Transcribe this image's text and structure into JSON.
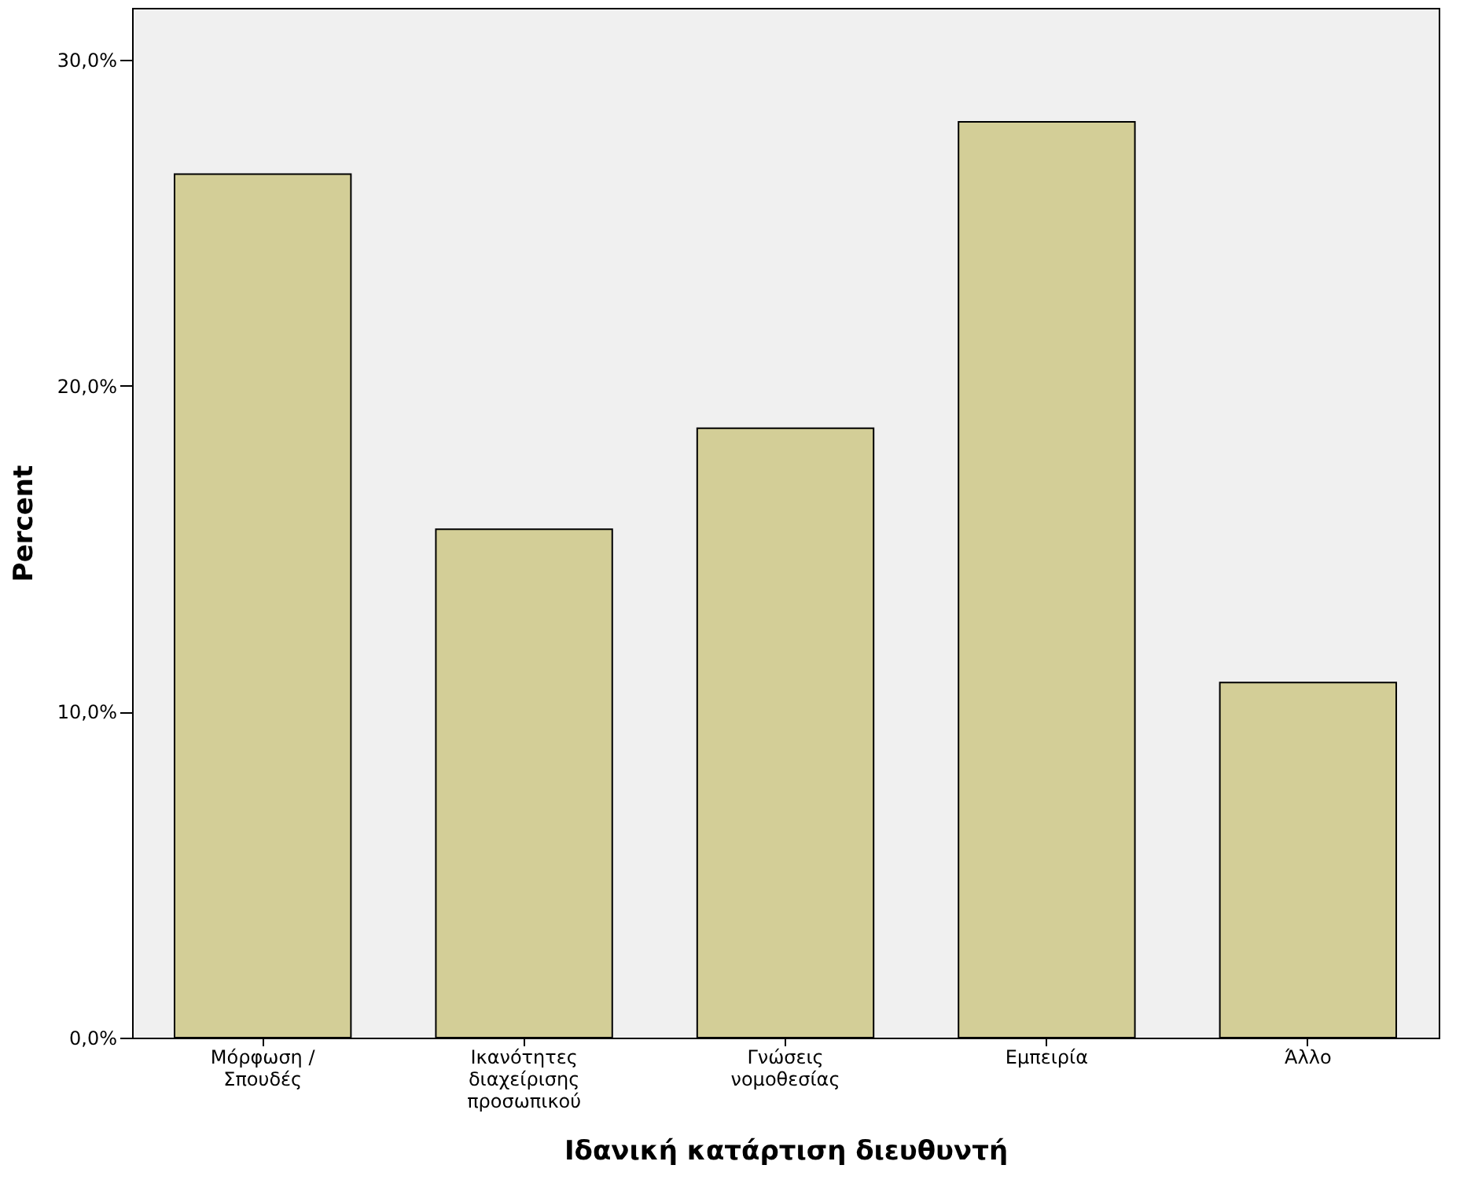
{
  "chart_data": {
    "type": "bar",
    "xlabel": "Ιδανική κατάρτιση διευθυντή",
    "ylabel": "Percent",
    "categories": [
      "Μόρφωση /\nΣπουδές",
      "Ικανότητες\nδιαχείρισης\nπροσωπικού",
      "Γνώσεις\nνομοθεσίας",
      "Εμπειρία",
      "Άλλο"
    ],
    "values": [
      26.5,
      15.6,
      18.7,
      28.1,
      10.9
    ],
    "color": "#d3ce97",
    "ylim": [
      0,
      31.6
    ],
    "yticks": [
      {
        "value": 0,
        "label": "0,0%"
      },
      {
        "value": 10,
        "label": "10,0%"
      },
      {
        "value": 20,
        "label": "20,0%"
      },
      {
        "value": 30,
        "label": "30,0%"
      }
    ],
    "grid": false
  }
}
